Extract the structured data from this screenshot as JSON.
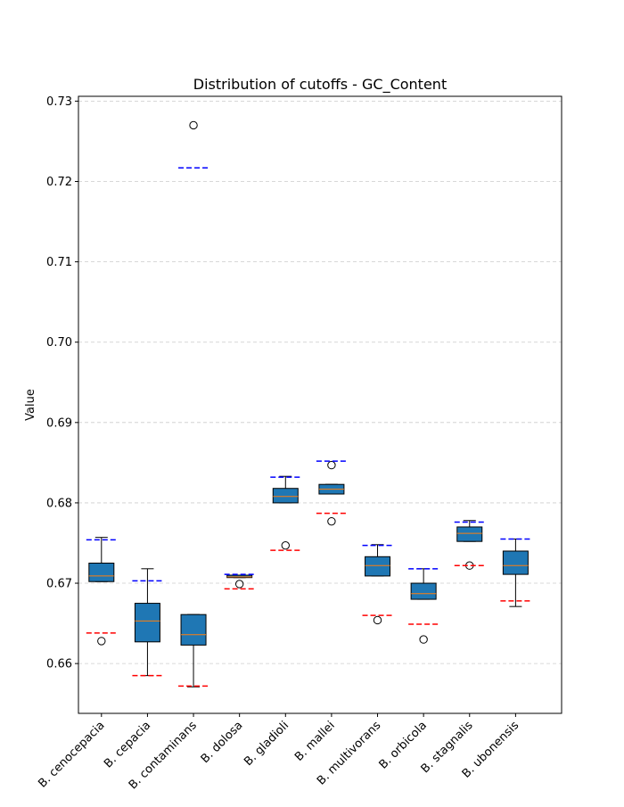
{
  "chart_data": {
    "type": "box",
    "title": "Distribution of cutoffs - GC_Content",
    "xlabel": "",
    "ylabel": "Value",
    "ylim": [
      0.6538,
      0.7306
    ],
    "yticks": [
      0.66,
      0.67,
      0.68,
      0.69,
      0.7,
      0.71,
      0.72,
      0.73
    ],
    "ytick_labels": [
      "0.66",
      "0.67",
      "0.68",
      "0.69",
      "0.70",
      "0.71",
      "0.72",
      "0.73"
    ],
    "grid": "horizontal dashed",
    "categories": [
      "B. cenocepacia",
      "B. cepacia",
      "B. contaminans",
      "B. dolosa",
      "B. gladioli",
      "B. mallei",
      "B. multivorans",
      "B. orbicola",
      "B. stagnalis",
      "B. ubonensis"
    ],
    "boxes": [
      {
        "whislo": 0.6702,
        "q1": 0.6702,
        "med": 0.6709,
        "q3": 0.6725,
        "whishi": 0.6757,
        "fliers": [
          0.6628
        ],
        "upper_cutoff": 0.6754,
        "lower_cutoff": 0.6638
      },
      {
        "whislo": 0.6585,
        "q1": 0.6627,
        "med": 0.6653,
        "q3": 0.6675,
        "whishi": 0.6718,
        "fliers": [],
        "upper_cutoff": 0.6703,
        "lower_cutoff": 0.6585
      },
      {
        "whislo": 0.6571,
        "q1": 0.6623,
        "med": 0.6636,
        "q3": 0.6661,
        "whishi": 0.6661,
        "fliers": [
          0.727
        ],
        "upper_cutoff": 0.7217,
        "lower_cutoff": 0.6572
      },
      {
        "whislo": 0.6707,
        "q1": 0.6707,
        "med": 0.6708,
        "q3": 0.671,
        "whishi": 0.671,
        "fliers": [
          0.6699
        ],
        "upper_cutoff": 0.6711,
        "lower_cutoff": 0.6693
      },
      {
        "whislo": 0.68,
        "q1": 0.68,
        "med": 0.6808,
        "q3": 0.6818,
        "whishi": 0.6833,
        "fliers": [
          0.6747
        ],
        "upper_cutoff": 0.6832,
        "lower_cutoff": 0.6741
      },
      {
        "whislo": 0.6811,
        "q1": 0.6811,
        "med": 0.6817,
        "q3": 0.6823,
        "whishi": 0.6823,
        "fliers": [
          0.6847,
          0.6777
        ],
        "upper_cutoff": 0.6852,
        "lower_cutoff": 0.6787
      },
      {
        "whislo": 0.6709,
        "q1": 0.6709,
        "med": 0.6722,
        "q3": 0.6733,
        "whishi": 0.6748,
        "fliers": [
          0.6654
        ],
        "upper_cutoff": 0.6747,
        "lower_cutoff": 0.666
      },
      {
        "whislo": 0.668,
        "q1": 0.668,
        "med": 0.6687,
        "q3": 0.67,
        "whishi": 0.6718,
        "fliers": [
          0.663
        ],
        "upper_cutoff": 0.6718,
        "lower_cutoff": 0.6649
      },
      {
        "whislo": 0.6752,
        "q1": 0.6752,
        "med": 0.6762,
        "q3": 0.677,
        "whishi": 0.6778,
        "fliers": [
          0.6722
        ],
        "upper_cutoff": 0.6776,
        "lower_cutoff": 0.6722
      },
      {
        "whislo": 0.6671,
        "q1": 0.6711,
        "med": 0.6722,
        "q3": 0.674,
        "whishi": 0.6755,
        "fliers": [],
        "upper_cutoff": 0.6755,
        "lower_cutoff": 0.6678
      }
    ],
    "colors": {
      "box_fill": "#1f77b4",
      "median": "#ff7f0e",
      "upper_cutoff": "#0000ff",
      "lower_cutoff": "#ff0000",
      "grid": "#cccccc"
    }
  }
}
